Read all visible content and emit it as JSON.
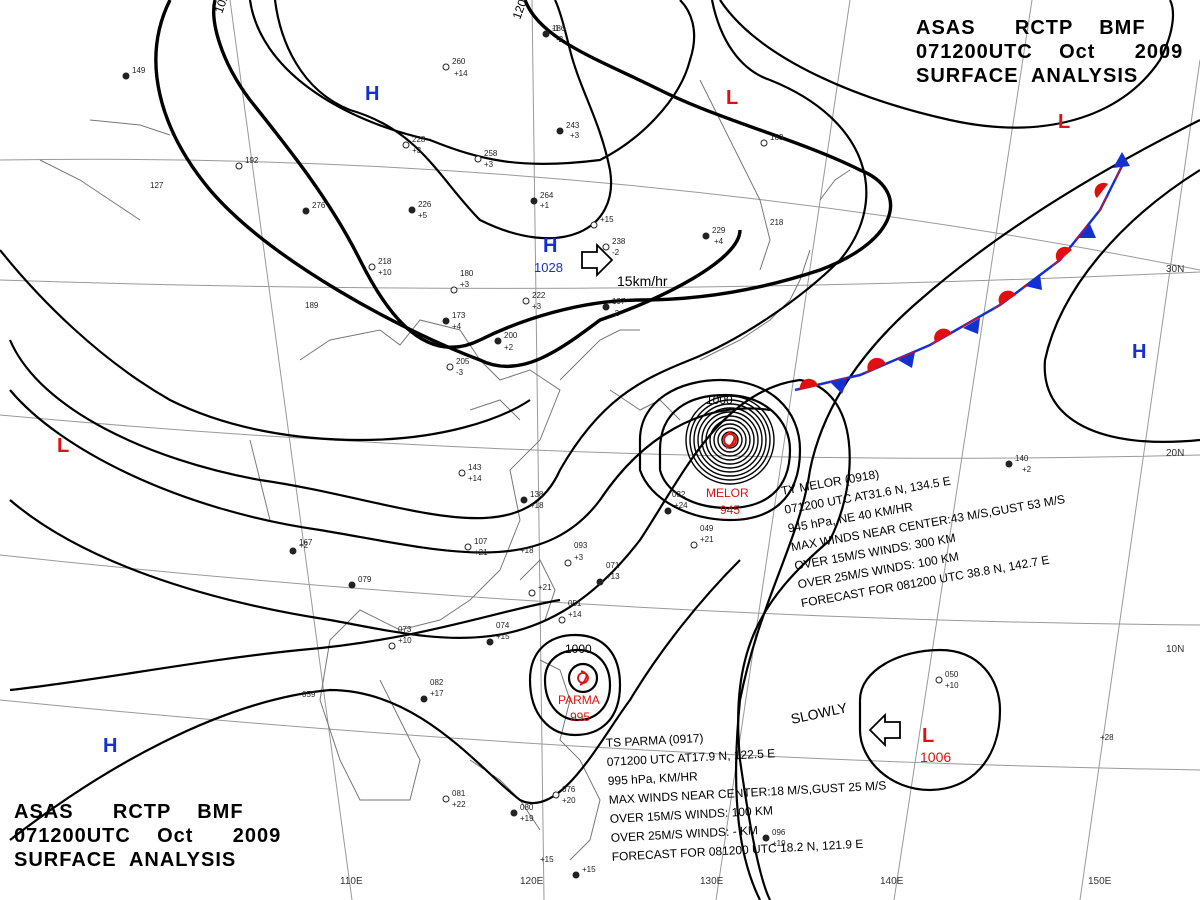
{
  "header_top": {
    "line1": "ASAS      RCTP    BMF",
    "line2": "071200UTC    Oct      2009",
    "line3": "SURFACE  ANALYSIS"
  },
  "header_bottom": {
    "line1": "ASAS      RCTP    BMF",
    "line2": "071200UTC    Oct      2009",
    "line3": "SURFACE  ANALYSIS"
  },
  "longitude_labels": [
    "110E",
    "120E",
    "130E",
    "140E",
    "150E"
  ],
  "latitude_labels": [
    "30N",
    "20N",
    "10N"
  ],
  "pressure_systems": [
    {
      "type": "H",
      "color": "#1530d0",
      "value": ""
    },
    {
      "type": "H",
      "color": "#1530d0",
      "value": "1028"
    },
    {
      "type": "H",
      "color": "#1530d0",
      "value": ""
    },
    {
      "type": "H",
      "color": "#1530d0",
      "value": ""
    },
    {
      "type": "L",
      "color": "#e01010",
      "value": ""
    },
    {
      "type": "L",
      "color": "#e01010",
      "value": ""
    },
    {
      "type": "L",
      "color": "#e01010",
      "value": ""
    },
    {
      "type": "L",
      "color": "#e01010",
      "value": "1006"
    }
  ],
  "isobar_labels": [
    "1000",
    "1000",
    "102",
    "120"
  ],
  "motion_labels": {
    "high": "15km/hr",
    "low": "SLOWLY"
  },
  "typhoon_melor": {
    "name": "MELOR",
    "pressure": "945",
    "info": [
      "TY  MELOR  (0918)",
      "071200 UTC  AT31.6 N, 134.5 E",
      "945 hPa, NE  40 KM/HR",
      "MAX WINDS NEAR CENTER:43 M/S,GUST 53 M/S",
      "OVER 15M/S WINDS: 300 KM",
      "OVER 25M/S WINDS: 100 KM",
      "FORECAST FOR 081200 UTC 38.8 N, 142.7 E"
    ]
  },
  "storm_parma": {
    "name": "PARMA",
    "pressure": "995",
    "info": [
      "TS  PARMA  (0917)",
      "071200 UTC  AT17.9 N, 122.5 E",
      "995 hPa,    KM/HR",
      "MAX WINDS NEAR CENTER:18 M/S,GUST 25 M/S",
      "OVER 15M/S WINDS: 100 KM",
      "OVER 25M/S WINDS: - KM",
      "FORECAST FOR 081200 UTC 18.2 N, 121.9 E"
    ]
  },
  "stations": [
    "186",
    "-2",
    "260",
    "+14",
    "243",
    "+3",
    "258",
    "+3",
    "264",
    "+1",
    "238",
    "-2",
    "229",
    "+4",
    "228",
    "+3",
    "226",
    "+5",
    "218",
    "+10",
    "276",
    "180",
    "+3",
    "189",
    "173",
    "+4",
    "205",
    "-3",
    "200",
    "+2",
    "222",
    "+3",
    "197",
    "-2",
    "143",
    "+14",
    "138",
    "+18",
    "107",
    "+21",
    "079",
    "073",
    "+10",
    "074",
    "+15",
    "051",
    "+14",
    "071",
    "+13",
    "093",
    "+3",
    "032",
    "+24",
    "049",
    "+21",
    "082",
    "+17",
    "059",
    "081",
    "+22",
    "080",
    "+19",
    "076",
    "+20",
    "096",
    "+19",
    "050",
    "+10",
    "140",
    "+2",
    "163",
    "218",
    "149",
    "127",
    "192",
    "167",
    "+2",
    "+18",
    "+21",
    "+15",
    "+15",
    "+28",
    "+15",
    "-1"
  ],
  "colors": {
    "high": "#1530d0",
    "low": "#e01010",
    "warm_front": "#e01010",
    "cold_front": "#1530d0",
    "isobar": "#000000",
    "coastline": "#777777",
    "grid": "#999999"
  }
}
